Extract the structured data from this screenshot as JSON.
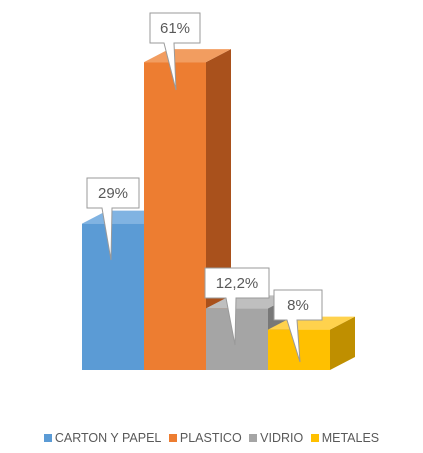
{
  "chart_data": {
    "type": "bar",
    "categories": [
      "CARTON Y PAPEL",
      "PLASTICO",
      "VIDRIO",
      "METALES"
    ],
    "values": [
      29,
      61,
      12.2,
      8
    ],
    "data_labels": [
      "29%",
      "61%",
      "12,2%",
      "8%"
    ],
    "unit": "%",
    "colors": [
      "#5B9BD5",
      "#ED7D31",
      "#A5A5A5",
      "#FFC000"
    ],
    "side_colors": [
      "#3E76AD",
      "#A9511C",
      "#787878",
      "#BF8F00"
    ],
    "top_colors": [
      "#80B3E2",
      "#F29D60",
      "#BFBFBF",
      "#FFD24D"
    ],
    "style": "3d-column",
    "ylim": [
      0,
      64
    ],
    "grid": false,
    "legend_position": "bottom"
  }
}
